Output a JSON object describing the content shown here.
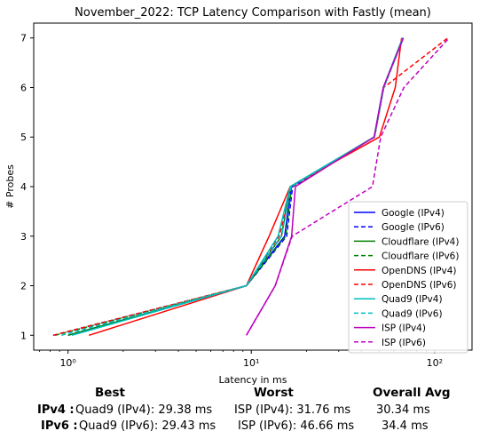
{
  "chart_data": {
    "type": "line",
    "title": "November_2022: TCP Latency Comparison with Fastly (mean)",
    "xlabel": "Latency in ms",
    "ylabel": "# Probes",
    "xscale": "log",
    "xlim": [
      0.65,
      160
    ],
    "ylim": [
      0.7,
      7.3
    ],
    "x_ticks": [
      1,
      10,
      100
    ],
    "x_tick_labels": [
      "10⁰",
      "10¹",
      "10²"
    ],
    "y_ticks": [
      1,
      2,
      3,
      4,
      5,
      6,
      7
    ],
    "grid": false,
    "legend_position": "lower-right",
    "series": [
      {
        "name": "Google (IPv4)",
        "color": "#0000ff",
        "dash": "solid",
        "x": [
          1.0,
          9.4,
          15.2,
          16.5,
          46.8,
          52.5,
          67.0
        ],
        "y": [
          1,
          2,
          3,
          4,
          5,
          6,
          7
        ]
      },
      {
        "name": "Google (IPv6)",
        "color": "#0000ff",
        "dash": "dashed",
        "x": [
          0.83,
          9.4,
          15.6,
          16.8,
          47.0,
          52.8,
          67.5
        ],
        "y": [
          1,
          2,
          3,
          4,
          5,
          6,
          7
        ]
      },
      {
        "name": "Cloudflare (IPv4)",
        "color": "#008000",
        "dash": "solid",
        "x": [
          1.0,
          9.4,
          14.6,
          16.3,
          46.8,
          52.5,
          67.0
        ],
        "y": [
          1,
          2,
          3,
          4,
          5,
          6,
          7
        ]
      },
      {
        "name": "Cloudflare (IPv6)",
        "color": "#008000",
        "dash": "dashed",
        "x": [
          0.85,
          9.4,
          15.4,
          16.6,
          47.0,
          52.8,
          67.5
        ],
        "y": [
          1,
          2,
          3,
          4,
          5,
          6,
          7
        ]
      },
      {
        "name": "OpenDNS (IPv4)",
        "color": "#ff0000",
        "dash": "solid",
        "x": [
          1.3,
          9.4,
          12.5,
          16.3,
          50.0,
          61.0,
          66.0
        ],
        "y": [
          1,
          2,
          3,
          4,
          5,
          6,
          7
        ]
      },
      {
        "name": "OpenDNS (IPv6)",
        "color": "#ff0000",
        "dash": "dashed",
        "x": [
          0.83,
          9.4,
          14.2,
          16.6,
          47.0,
          52.8,
          118.0
        ],
        "y": [
          1,
          2,
          3,
          4,
          5,
          6,
          7
        ]
      },
      {
        "name": "Quad9 (IPv4)",
        "color": "#00bfbf",
        "dash": "solid",
        "x": [
          1.05,
          9.4,
          14.0,
          16.3,
          46.8,
          52.5,
          67.0
        ],
        "y": [
          1,
          2,
          3,
          4,
          5,
          6,
          7
        ]
      },
      {
        "name": "Quad9 (IPv6)",
        "color": "#00bfbf",
        "dash": "dashed",
        "x": [
          0.92,
          9.4,
          14.6,
          16.5,
          47.0,
          52.8,
          67.5
        ],
        "y": [
          1,
          2,
          3,
          4,
          5,
          6,
          7
        ]
      },
      {
        "name": "ISP (IPv4)",
        "color": "#bf00bf",
        "dash": "solid",
        "x": [
          9.4,
          13.5,
          16.6,
          17.4,
          46.8,
          52.5,
          67.5
        ],
        "y": [
          1,
          2,
          3,
          4,
          5,
          6,
          7
        ]
      },
      {
        "name": "ISP (IPv6)",
        "color": "#bf00bf",
        "dash": "dashed",
        "x": [
          9.4,
          13.5,
          16.7,
          45.8,
          50.8,
          68.0,
          120.0
        ],
        "y": [
          1,
          2,
          3,
          4,
          5,
          6,
          7
        ]
      }
    ]
  },
  "stats": {
    "headers": {
      "best": "Best",
      "worst": "Worst",
      "avg": "Overall Avg"
    },
    "ipv4": {
      "label": "IPv4 :",
      "best": "Quad9 (IPv4): 29.38 ms",
      "worst": "ISP (IPv4): 31.76 ms",
      "avg": "30.34 ms"
    },
    "ipv6": {
      "label": "IPv6 :",
      "best": "Quad9 (IPv6): 29.43 ms",
      "worst": "ISP (IPv6): 46.66 ms",
      "avg": "34.4 ms"
    }
  }
}
